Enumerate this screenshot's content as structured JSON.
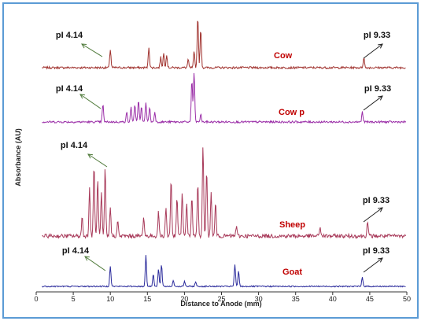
{
  "chart_data": {
    "type": "line",
    "xlabel": "Distance to Anode (mm)",
    "ylabel": "Absorbance (AU)",
    "xlim": [
      0,
      50
    ],
    "x_ticks": [
      "0",
      "5",
      "10",
      "15",
      "20",
      "25",
      "30",
      "35",
      "40",
      "45",
      "50"
    ],
    "grid": false,
    "colors": {
      "cow": "#a0322e",
      "cow_p": "#9b2fa8",
      "sheep": "#a83a5a",
      "goat": "#2b2b9c",
      "arrow": "#4f7a3a",
      "label": "#c00000"
    },
    "markers": {
      "low": "pI 4.14",
      "high": "pI 9.33"
    },
    "series": [
      {
        "name": "Cow",
        "peaks": [
          [
            10.0,
            0.35
          ],
          [
            15.2,
            0.4
          ],
          [
            16.8,
            0.2
          ],
          [
            17.2,
            0.28
          ],
          [
            17.6,
            0.25
          ],
          [
            20.5,
            0.15
          ],
          [
            21.3,
            0.3
          ],
          [
            21.8,
            1.0
          ],
          [
            22.2,
            0.75
          ],
          [
            44.2,
            0.2
          ]
        ]
      },
      {
        "name": "Cow p",
        "peaks": [
          [
            9.0,
            0.35
          ],
          [
            12.2,
            0.2
          ],
          [
            12.8,
            0.3
          ],
          [
            13.3,
            0.35
          ],
          [
            13.8,
            0.45
          ],
          [
            14.2,
            0.3
          ],
          [
            14.8,
            0.4
          ],
          [
            15.3,
            0.3
          ],
          [
            16.0,
            0.2
          ],
          [
            21.0,
            0.85
          ],
          [
            21.3,
            1.0
          ],
          [
            22.2,
            0.15
          ],
          [
            44.0,
            0.2
          ]
        ]
      },
      {
        "name": "Sheep",
        "peaks": [
          [
            6.2,
            0.2
          ],
          [
            7.2,
            0.5
          ],
          [
            7.8,
            0.75
          ],
          [
            8.3,
            0.6
          ],
          [
            8.8,
            0.45
          ],
          [
            9.3,
            0.7
          ],
          [
            10.0,
            0.3
          ],
          [
            11.0,
            0.15
          ],
          [
            14.5,
            0.2
          ],
          [
            16.5,
            0.25
          ],
          [
            17.5,
            0.3
          ],
          [
            18.2,
            0.6
          ],
          [
            19.0,
            0.4
          ],
          [
            19.7,
            0.45
          ],
          [
            20.3,
            0.35
          ],
          [
            21.0,
            0.4
          ],
          [
            21.8,
            0.55
          ],
          [
            22.5,
            0.95
          ],
          [
            23.0,
            0.7
          ],
          [
            23.6,
            0.45
          ],
          [
            24.2,
            0.35
          ],
          [
            27.0,
            0.1
          ],
          [
            38.3,
            0.1
          ],
          [
            44.7,
            0.15
          ]
        ]
      },
      {
        "name": "Goat",
        "peaks": [
          [
            10.0,
            0.65
          ],
          [
            14.8,
            1.0
          ],
          [
            15.8,
            0.4
          ],
          [
            16.5,
            0.55
          ],
          [
            16.9,
            0.7
          ],
          [
            18.5,
            0.2
          ],
          [
            20.0,
            0.15
          ],
          [
            21.5,
            0.15
          ],
          [
            26.8,
            0.7
          ],
          [
            27.3,
            0.5
          ],
          [
            44.0,
            0.3
          ]
        ]
      }
    ]
  }
}
